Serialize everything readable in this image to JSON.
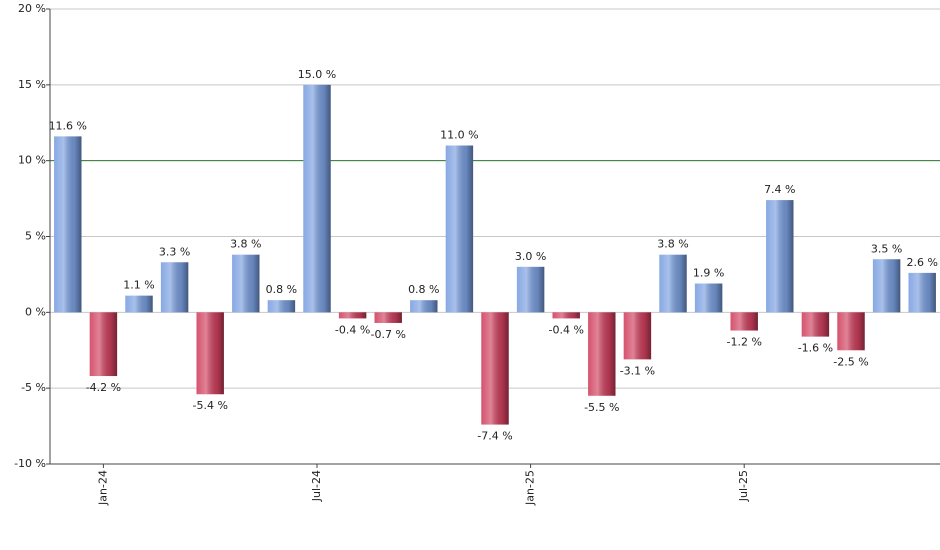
{
  "chart_data": {
    "type": "bar",
    "categories": [
      null,
      "Jan-24",
      null,
      null,
      null,
      null,
      null,
      "Jul-24",
      null,
      null,
      null,
      null,
      null,
      "Jan-25",
      null,
      null,
      null,
      null,
      null,
      "Jul-25",
      null,
      null,
      null,
      null,
      null
    ],
    "values": [
      11.6,
      -4.2,
      1.1,
      3.3,
      -5.4,
      3.8,
      0.8,
      15.0,
      -0.4,
      -0.7,
      0.8,
      11.0,
      -7.4,
      3.0,
      -0.4,
      -5.5,
      -3.1,
      3.8,
      1.9,
      -1.2,
      7.4,
      -1.6,
      -2.5,
      3.5,
      2.6
    ],
    "value_labels": [
      "11.6 %",
      "-4.2 %",
      "1.1 %",
      "3.3 %",
      "-5.4 %",
      "3.8 %",
      "0.8 %",
      "15.0 %",
      "-0.4 %",
      "-0.7 %",
      "0.8 %",
      "11.0 %",
      "-7.4 %",
      "3.0 %",
      "-0.4 %",
      "-5.5 %",
      "-3.1 %",
      "3.8 %",
      "1.9 %",
      "-1.2 %",
      "7.4 %",
      "-1.6 %",
      "-2.5 %",
      "3.5 %",
      "2.6 %"
    ],
    "positive_color": "#7a9fe0",
    "negative_color": "#d0405e",
    "reference_line": 10,
    "reference_color": "#2e7d32",
    "ylim": [
      -10,
      20
    ],
    "yticks": [
      {
        "value": -10,
        "label": "-10 %"
      },
      {
        "value": -5,
        "label": "-5 %"
      },
      {
        "value": 0,
        "label": "0 %"
      },
      {
        "value": 5,
        "label": "5 %"
      },
      {
        "value": 10,
        "label": "10 %"
      },
      {
        "value": 15,
        "label": "15 %"
      },
      {
        "value": 20,
        "label": "20 %"
      }
    ],
    "grid": true
  }
}
